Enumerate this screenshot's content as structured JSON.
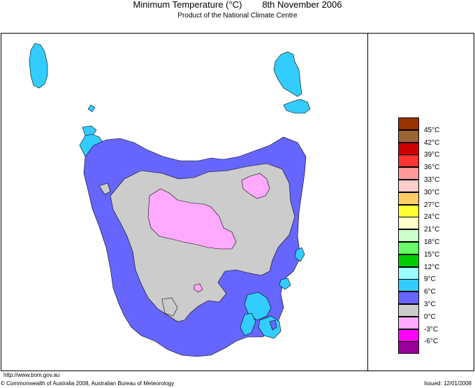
{
  "header": {
    "title": "Minimum Temperature (°C)        8th November 2006",
    "subtitle": "Product of the National Climate Centre"
  },
  "legend": {
    "items": [
      {
        "label": "45°C",
        "color": "#993300"
      },
      {
        "label": "42°C",
        "color": "#996633"
      },
      {
        "label": "39°C",
        "color": "#cc0000"
      },
      {
        "label": "36°C",
        "color": "#ff3333"
      },
      {
        "label": "33°C",
        "color": "#ff9999"
      },
      {
        "label": "30°C",
        "color": "#ffcccc"
      },
      {
        "label": "27°C",
        "color": "#ffcc66"
      },
      {
        "label": "24°C",
        "color": "#ffff33"
      },
      {
        "label": "21°C",
        "color": "#ffffcc"
      },
      {
        "label": "18°C",
        "color": "#ccffcc"
      },
      {
        "label": "15°C",
        "color": "#66ff66"
      },
      {
        "label": "12°C",
        "color": "#00cc00"
      },
      {
        "label": "9°C",
        "color": "#99ffff"
      },
      {
        "label": "6°C",
        "color": "#33ccff"
      },
      {
        "label": "3°C",
        "color": "#6666ff"
      },
      {
        "label": "0°C",
        "color": "#cccccc"
      },
      {
        "label": "-3°C",
        "color": "#ffaaff"
      },
      {
        "label": "-6°C",
        "color": "#ff00ff"
      },
      {
        "label": "",
        "color": "#990099"
      }
    ]
  },
  "map": {
    "region_colors": {
      "band_6_9": "#33ccff",
      "band_3_6": "#6666ff",
      "band_0_3": "#cccccc",
      "band_minus3_0": "#ffaaff"
    }
  },
  "footer": {
    "url": "http://www.bom.gov.au",
    "copyright": "© Commonwealth of Australia 2008, Australian Bureau of Meteorology",
    "issued": "Issued: 12/01/2008"
  }
}
